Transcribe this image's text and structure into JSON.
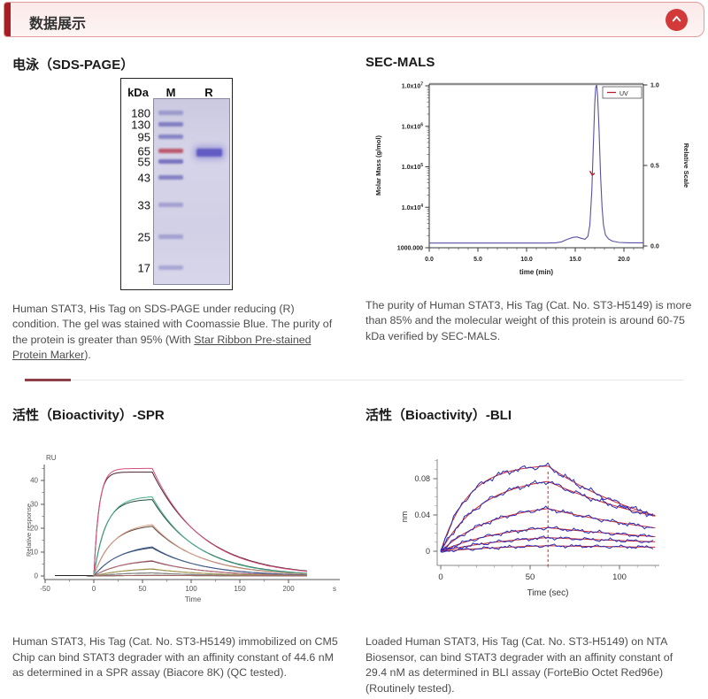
{
  "header": {
    "title": "数据展示"
  },
  "colors": {
    "accent_red": "#d23a3a",
    "header_bar": "#a81e24",
    "divider_dark": "#8c4048"
  },
  "panels": {
    "sds_page": {
      "title": "电泳（SDS-PAGE）",
      "caption_before": "Human STAT3, His Tag on SDS-PAGE under reducing (R) condition. The gel was stained with Coomassie Blue. The purity of the protein is greater than 95% (With ",
      "caption_link": "Star Ribbon Pre-stained Protein Marker",
      "caption_after": ").",
      "gel": {
        "unit_label": "kDa",
        "lanes": [
          "M",
          "R"
        ],
        "markers": [
          {
            "label": "180",
            "y": 39,
            "opacity": 0.5
          },
          {
            "label": "130",
            "y": 52,
            "opacity": 0.78
          },
          {
            "label": "95",
            "y": 66,
            "opacity": 0.72
          },
          {
            "label": "65",
            "y": 82,
            "opacity": 0.88,
            "color": "#b8475a"
          },
          {
            "label": "55",
            "y": 94,
            "opacity": 0.88
          },
          {
            "label": "43",
            "y": 112,
            "opacity": 0.75
          },
          {
            "label": "33",
            "y": 143,
            "opacity": 0.45
          },
          {
            "label": "25",
            "y": 179,
            "opacity": 0.45
          },
          {
            "label": "17",
            "y": 214,
            "opacity": 0.42
          }
        ],
        "marker_band_color": "#6a66b8",
        "sample_band": {
          "lane": "R",
          "y": 83,
          "height": 9,
          "color": "#5b55c2",
          "opacity": 0.95
        }
      }
    },
    "sec_mals": {
      "title": "SEC-MALS",
      "caption": "The purity of Human STAT3, His Tag (Cat. No. ST3-H5149) is more than 85% and the molecular weight of this protein is around 60-75 kDa verified by SEC-MALS."
    },
    "spr": {
      "title": "活性（Bioactivity）-SPR",
      "caption": "Human STAT3, His Tag (Cat. No. ST3-H5149) immobilized on CM5 Chip can bind STAT3 degrader with an affinity constant of 44.6 nM as determined in a SPR assay (Biacore 8K) (QC tested)."
    },
    "bli": {
      "title": "活性（Bioactivity）-BLI",
      "caption": "Loaded Human STAT3, His Tag (Cat. No. ST3-H5149) on NTA Biosensor, can bind STAT3 degrader with an affinity constant of 29.4 nM as determined in BLI assay (ForteBio Octet Red96e) (Routinely tested)."
    }
  },
  "chart_data": [
    {
      "id": "sec_mals",
      "type": "line",
      "xlabel": "time (min)",
      "ylabel_left": "Molar Mass (g/mol)",
      "ylabel_right": "Relative Scale",
      "xticks": [
        "0.0",
        "5.0",
        "10.0",
        "15.0",
        "20.0"
      ],
      "yticks_left": [
        "1.0x10^7",
        "1.0x10^6",
        "1.0x10^5",
        "1.0x10^4",
        "1000.000"
      ],
      "yticks_right": [
        "1.0",
        "0.5",
        "0.0"
      ],
      "xlim": [
        0,
        22
      ],
      "ylim_right": [
        0,
        1
      ],
      "legend": [
        {
          "label": "UV",
          "color": "#b22230"
        }
      ],
      "series": [
        {
          "name": "UV",
          "color": "#5752a0",
          "points": [
            [
              0,
              0.018
            ],
            [
              3,
              0.018
            ],
            [
              6,
              0.018
            ],
            [
              9,
              0.018
            ],
            [
              12,
              0.018
            ],
            [
              13,
              0.02
            ],
            [
              13.6,
              0.026
            ],
            [
              14.2,
              0.042
            ],
            [
              14.8,
              0.054
            ],
            [
              15.2,
              0.056
            ],
            [
              15.6,
              0.048
            ],
            [
              16.0,
              0.042
            ],
            [
              16.3,
              0.06
            ],
            [
              16.5,
              0.13
            ],
            [
              16.7,
              0.34
            ],
            [
              16.85,
              0.62
            ],
            [
              17.0,
              0.88
            ],
            [
              17.1,
              0.985
            ],
            [
              17.2,
              1.0
            ],
            [
              17.3,
              0.93
            ],
            [
              17.45,
              0.72
            ],
            [
              17.6,
              0.44
            ],
            [
              17.75,
              0.24
            ],
            [
              17.9,
              0.13
            ],
            [
              18.1,
              0.07
            ],
            [
              18.4,
              0.045
            ],
            [
              18.8,
              0.03
            ],
            [
              19.5,
              0.022
            ],
            [
              20.5,
              0.02
            ],
            [
              22,
              0.02
            ]
          ]
        },
        {
          "name": "Molar Mass",
          "color": "#b02030",
          "points": [
            [
              16.5,
              0.465
            ],
            [
              16.75,
              0.44
            ],
            [
              17.0,
              0.452
            ]
          ]
        }
      ]
    },
    {
      "id": "spr",
      "type": "line",
      "corner_label": "RU",
      "xlabel": "Time",
      "x_unit": "s",
      "ylabel": "Relative response",
      "xticks": [
        -50,
        0,
        50,
        100,
        150,
        200
      ],
      "yticks": [
        0,
        10,
        20,
        30,
        40
      ],
      "xlim": [
        -40,
        220
      ],
      "assoc_end": 60,
      "series": [
        {
          "peak": 43.5,
          "kon": 0.2,
          "koff": 0.019,
          "color_fit": "#d94f7e",
          "color_data": "#46242e"
        },
        {
          "peak": 32.0,
          "kon": 0.085,
          "koff": 0.021,
          "color_fit": "#4aa98d",
          "color_data": "#1f4a3a"
        },
        {
          "peak": 20.8,
          "kon": 0.055,
          "koff": 0.02,
          "color_fit": "#d9a084",
          "color_data": "#5a4640"
        },
        {
          "peak": 11.8,
          "kon": 0.04,
          "koff": 0.02,
          "color_fit": "#46618f",
          "color_data": "#243a5e"
        },
        {
          "peak": 6.2,
          "kon": 0.035,
          "koff": 0.019,
          "color_fit": "#b06a74",
          "color_data": "#5e2f3a"
        },
        {
          "peak": 2.9,
          "kon": 0.03,
          "koff": 0.018,
          "color_fit": "#a89a55",
          "color_data": "#6e6430"
        },
        {
          "peak": 1.3,
          "kon": 0.028,
          "koff": 0.018,
          "color_fit": "#8a8a8a",
          "color_data": "#333333"
        },
        {
          "peak": 0.25,
          "kon": 0.02,
          "koff": 0.01,
          "color_fit": "#a06a60",
          "color_data": "#222222"
        }
      ]
    },
    {
      "id": "bli",
      "type": "line",
      "xlabel": "Time (sec)",
      "ylabel": "nm",
      "xticks": [
        0,
        50,
        100
      ],
      "yticks": [
        "0",
        "0.04",
        "0.08"
      ],
      "xlim": [
        0,
        120
      ],
      "assoc_end": 60,
      "noise_amp": 0.0036,
      "colors": {
        "data": "#2a2ab8",
        "fit": "#d02a2a",
        "dashed_line": "#cc2222"
      },
      "series": [
        {
          "peak": 0.094,
          "kon": 0.065,
          "koff": 0.0145
        },
        {
          "peak": 0.077,
          "kon": 0.042,
          "koff": 0.0115
        },
        {
          "peak": 0.047,
          "kon": 0.034,
          "koff": 0.01
        },
        {
          "peak": 0.026,
          "kon": 0.028,
          "koff": 0.008
        },
        {
          "peak": 0.015,
          "kon": 0.022,
          "koff": 0.006
        },
        {
          "peak": 0.006,
          "kon": 0.018,
          "koff": 0.005
        }
      ]
    }
  ]
}
